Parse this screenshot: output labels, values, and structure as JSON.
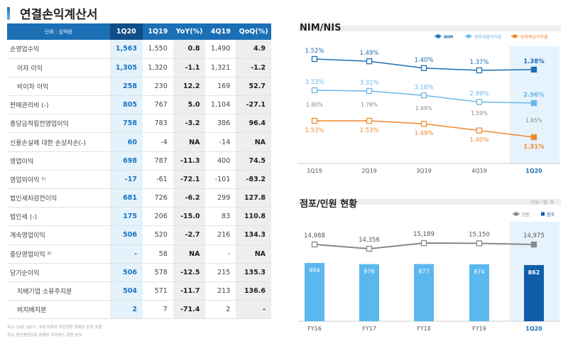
{
  "title": "연결손익계산서",
  "table": {
    "headers": [
      "단위 : 십억원",
      "1Q20",
      "1Q19",
      "YoY(%)",
      "4Q19",
      "QoQ(%)"
    ],
    "rows": [
      {
        "label": "순영업수익",
        "indent": false,
        "v": [
          "1,563",
          "1,550",
          "0.8",
          "1,490",
          "4.9"
        ]
      },
      {
        "label": "이자 이익",
        "indent": true,
        "v": [
          "1,305",
          "1,320",
          "-1.1",
          "1,321",
          "-1.2"
        ]
      },
      {
        "label": "비이자 이익",
        "indent": true,
        "v": [
          "258",
          "230",
          "12.2",
          "169",
          "52.7"
        ]
      },
      {
        "label": "판매관리비 (-)",
        "indent": false,
        "v": [
          "805",
          "767",
          "5.0",
          "1,104",
          "-27.1"
        ]
      },
      {
        "label": "충당금적립전영업이익",
        "indent": false,
        "v": [
          "758",
          "783",
          "-3.2",
          "386",
          "96.4"
        ]
      },
      {
        "label": "신용손실에 대한 손상차손(-)",
        "indent": false,
        "v": [
          "60",
          "-4",
          "NA",
          "-14",
          "NA"
        ]
      },
      {
        "label": "영업이익",
        "indent": false,
        "v": [
          "698",
          "787",
          "-11.3",
          "400",
          "74.5"
        ]
      },
      {
        "label": "영업외이익 ¹⁾",
        "indent": false,
        "v": [
          "-17",
          "-61",
          "-72.1",
          "-101",
          "-83.2"
        ]
      },
      {
        "label": "법인세차감전이익",
        "indent": false,
        "v": [
          "681",
          "726",
          "-6.2",
          "299",
          "127.8"
        ]
      },
      {
        "label": "법인세 (-)",
        "indent": false,
        "v": [
          "175",
          "206",
          "-15.0",
          "83",
          "110.8"
        ]
      },
      {
        "label": "계속영업이익",
        "indent": false,
        "v": [
          "506",
          "520",
          "-2.7",
          "216",
          "134.3"
        ]
      },
      {
        "label": "중단영업이익 ²⁾",
        "indent": false,
        "v": [
          "-",
          "58",
          "NA",
          "-",
          "NA"
        ]
      },
      {
        "label": "당기순이익",
        "indent": false,
        "v": [
          "506",
          "578",
          "-12.5",
          "215",
          "135.3"
        ]
      },
      {
        "label": "지배기업 소유주지분",
        "indent": true,
        "v": [
          "504",
          "571",
          "-11.7",
          "213",
          "136.6"
        ]
      },
      {
        "label": "비지배지분",
        "indent": true,
        "v": [
          "2",
          "7",
          "-71.4",
          "2",
          "-"
        ]
      }
    ]
  },
  "notes": [
    "주1) 19년 1분기 : 5개 자회사 이전관련 회계상 손익 포함",
    "주2) 중단영업으로 분류된 우리카드 관련 손익"
  ],
  "chart_data": [
    {
      "type": "line",
      "title": "NIM/NIS",
      "categories": [
        "1Q19",
        "2Q19",
        "3Q19",
        "4Q19",
        "1Q20"
      ],
      "series": [
        {
          "name": "NIM",
          "values": [
            1.52,
            1.49,
            1.4,
            1.37,
            1.38
          ],
          "labels": [
            "1.52%",
            "1.49%",
            "1.40%",
            "1.37%",
            "1.38%"
          ],
          "color": "#1a6fb5"
        },
        {
          "name": "원화대출이자율",
          "values": [
            3.33,
            3.31,
            3.18,
            2.99,
            2.96
          ],
          "labels": [
            "3.33%",
            "3.31%",
            "3.18%",
            "2.99%",
            "2.96%"
          ],
          "color": "#6ab7ea"
        },
        {
          "name": "원화예금이자율",
          "values": [
            1.53,
            1.53,
            1.49,
            1.4,
            1.31
          ],
          "labels": [
            "1.53%",
            "1.53%",
            "1.49%",
            "1.40%",
            "1.31%"
          ],
          "color": "#f08a2c"
        }
      ],
      "nis": {
        "values": [
          1.8,
          1.78,
          1.69,
          1.59,
          1.65
        ],
        "labels": [
          "1.80%",
          "1.78%",
          "1.69%",
          "1.59%",
          "1.65%"
        ]
      }
    },
    {
      "type": "bar+line",
      "title": "점포/인원 현황",
      "unit": "단위 : 명, 개",
      "categories": [
        "FY16",
        "FY17",
        "FY18",
        "FY19",
        "1Q20"
      ],
      "series": [
        {
          "name": "인원",
          "type": "line",
          "values": [
            14988,
            14356,
            15189,
            15150,
            14975
          ],
          "labels": [
            "14,988",
            "14,356",
            "15,189",
            "15,150",
            "14,975"
          ],
          "color": "#888888"
        },
        {
          "name": "점포",
          "type": "bar",
          "values": [
            894,
            876,
            877,
            874,
            862
          ],
          "labels": [
            "894",
            "876",
            "877",
            "874",
            "862"
          ],
          "color": "#5bb8ee",
          "highlight": "#0f5fa8"
        }
      ]
    }
  ]
}
